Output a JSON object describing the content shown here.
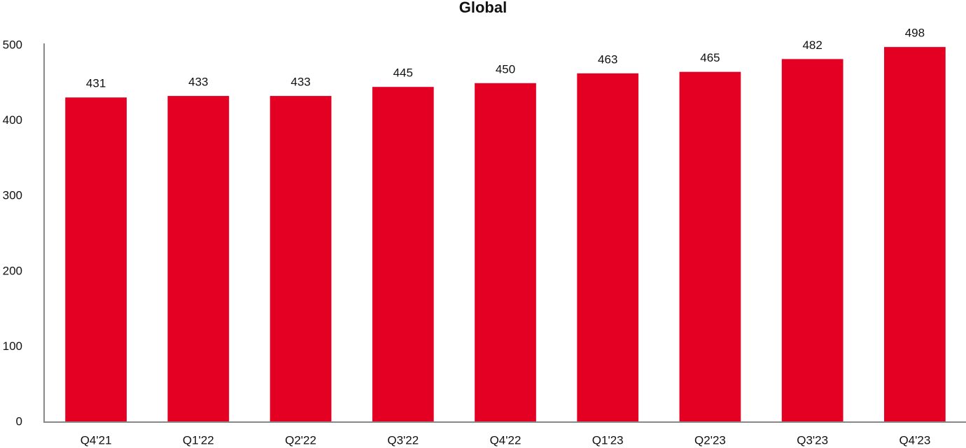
{
  "chart_data": {
    "type": "bar",
    "title": "Global",
    "categories": [
      "Q4'21",
      "Q1'22",
      "Q2'22",
      "Q3'22",
      "Q4'22",
      "Q1'23",
      "Q2'23",
      "Q3'23",
      "Q4'23"
    ],
    "values": [
      431,
      433,
      433,
      445,
      450,
      463,
      465,
      482,
      498
    ],
    "color": "#e30022",
    "ylim": [
      0,
      500
    ],
    "yticks": [
      0,
      100,
      200,
      300,
      400,
      500
    ],
    "grid": false
  }
}
